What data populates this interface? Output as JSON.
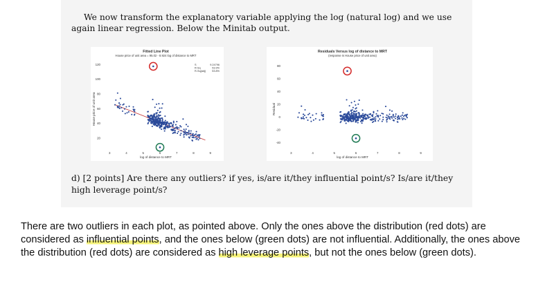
{
  "paper": {
    "intro": "We now transform the explanatory variable applying the log (natural log) and we use again linear regression. Below the Minitab output.",
    "question": "d) [2 points] Are there any outliers? if yes, is/are it/they influential point/s? Is/are it/they high leverage point/s?"
  },
  "chart_data": [
    {
      "type": "scatter",
      "title": "Fitted Line Plot",
      "subtitle": "House price of unit area = 95.02 - 8.924 log of distance to MRT",
      "xlabel": "log of distance to MRT",
      "ylabel": "House price of unit area",
      "xticks": [
        "3",
        "4",
        "5",
        "6",
        "7",
        "8",
        "9"
      ],
      "yticks": [
        "20",
        "40",
        "60",
        "80",
        "100",
        "120"
      ],
      "xlim": [
        2.7,
        9.3
      ],
      "ylim": [
        5,
        125
      ],
      "fit": {
        "intercept": 95.02,
        "slope": -8.924
      },
      "stats": [
        {
          "label": "S",
          "value": "9.24796"
        },
        {
          "label": "R-Sq",
          "value": "53.9%"
        },
        {
          "label": "R-Sq(adj)",
          "value": "53.8%"
        }
      ],
      "outliers": [
        {
          "x": 5.6,
          "y": 117.5,
          "type": "influential",
          "color": "#d42a2a"
        },
        {
          "x": 6.0,
          "y": 7.6,
          "type": "not-influential",
          "color": "#1f7a53"
        }
      ]
    },
    {
      "type": "scatter",
      "title": "Residuals Versus log of distance to MRT",
      "subtitle": "(response is House price of unit area)",
      "xlabel": "log of distance to MRT",
      "ylabel": "Residual",
      "xticks": [
        "3",
        "4",
        "5",
        "6",
        "7",
        "8",
        "9"
      ],
      "yticks": [
        "-40",
        "-20",
        "0",
        "20",
        "40",
        "60",
        "80"
      ],
      "xlim": [
        2.7,
        9.3
      ],
      "ylim": [
        -50,
        88
      ],
      "outliers": [
        {
          "x": 5.6,
          "y": 72,
          "type": "influential",
          "color": "#d42a2a"
        },
        {
          "x": 6.0,
          "y": -33,
          "type": "not-influential",
          "color": "#1f7a53"
        }
      ]
    }
  ],
  "answer": {
    "p1": "There are two outliers in each plot, as pointed above. Only the ones above the distribution (red dots) are considered as ",
    "h1": "influential points",
    "p2": ", and the ones below (green dots) are not influential. Additionally, the ones above the distribution (red dots) are considered as ",
    "h2": "high leverage points",
    "p3": ", but not the ones below (green dots)."
  },
  "colors": {
    "point": "#2b4a9a",
    "fit_line": "#c43030",
    "highlight": "#f6f37a"
  }
}
